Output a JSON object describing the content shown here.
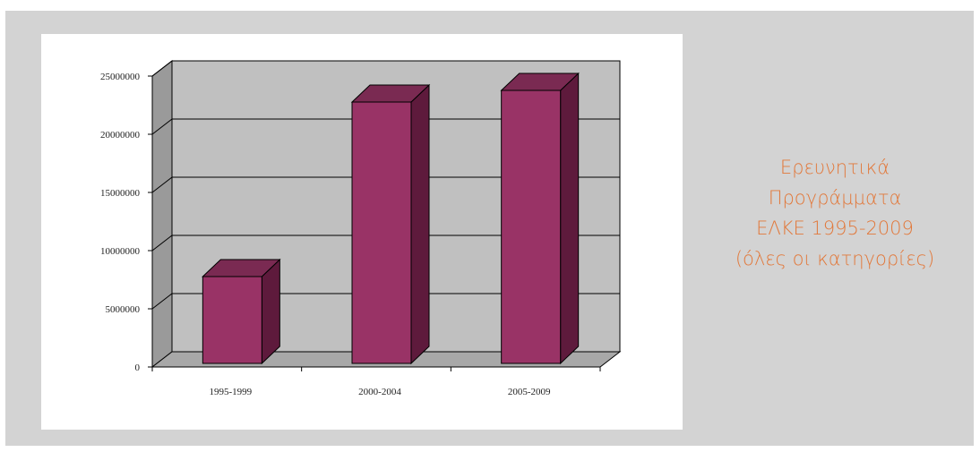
{
  "caption": {
    "lines": [
      "Ερευνητικά",
      "Προγράμματα",
      "ΕΛΚΕ 1995-2009",
      "(όλες οι κατηγορίες)"
    ],
    "color": "#e2783a"
  },
  "chart_data": {
    "type": "bar",
    "style": "3d-column",
    "categories": [
      "1995-1999",
      "2000-2004",
      "2005-2009"
    ],
    "values": [
      8000000,
      23000000,
      24000000
    ],
    "title": "",
    "xlabel": "",
    "ylabel": "",
    "ylim": [
      0,
      25000000
    ],
    "yticks": [
      0,
      5000000,
      10000000,
      15000000,
      20000000,
      25000000
    ],
    "ytick_labels": [
      "0",
      "5000000",
      "10000000",
      "15000000",
      "20000000",
      "25000000"
    ],
    "grid": true,
    "legend": "none",
    "colors": {
      "bar_front": "#993366",
      "bar_side": "#5e1a3c",
      "bar_top": "#7a2a52",
      "wall": "#c0c0c0",
      "floor": "#a8a8a8"
    }
  }
}
